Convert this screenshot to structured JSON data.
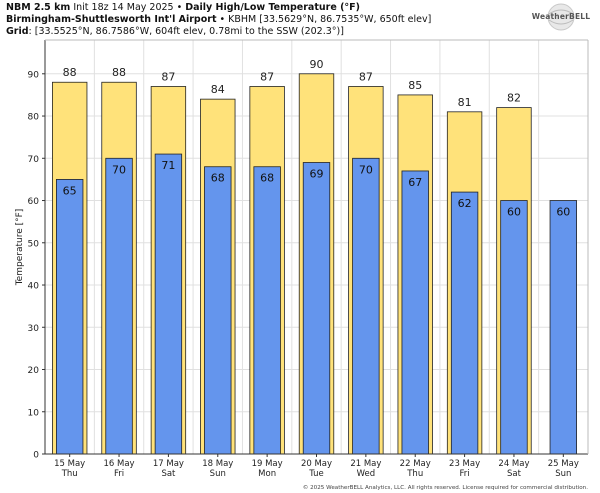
{
  "header": {
    "line1_bold_a": "NBM 2.5 km",
    "line1_normal": " Init 18z 14 May 2025 • ",
    "line1_bold_b": "Daily High/Low Temperature (°F)",
    "line2_bold": "Birmingham-Shuttlesworth Int'l Airport",
    "line2_normal": " • KBHM [33.5629°N, 86.7535°W, 650ft elev]",
    "line3_bold": "Grid",
    "line3_normal": ": [33.5525°N, 86.7586°W, 604ft elev, 0.78mi to the SSW (202.3°)]"
  },
  "logo": {
    "text": "WeatherBELL",
    "icon": "weatherbell-globe-logo"
  },
  "copyright": "© 2025 WeatherBELL Analytics, LLC. All rights reserved. License required for commercial distribution.",
  "colors": {
    "high": "#ffe27a",
    "low": "#6495ed",
    "grid": "#e0e0e0",
    "bar_stroke": "#222222"
  },
  "chart_data": {
    "type": "bar",
    "ylabel": "Temperature [°F]",
    "ylim": [
      0,
      98
    ],
    "yticks": [
      0,
      10,
      20,
      30,
      40,
      50,
      60,
      70,
      80,
      90
    ],
    "grid": true,
    "categories": [
      {
        "date": "15 May",
        "day": "Thu"
      },
      {
        "date": "16 May",
        "day": "Fri"
      },
      {
        "date": "17 May",
        "day": "Sat"
      },
      {
        "date": "18 May",
        "day": "Sun"
      },
      {
        "date": "19 May",
        "day": "Mon"
      },
      {
        "date": "20 May",
        "day": "Tue"
      },
      {
        "date": "21 May",
        "day": "Wed"
      },
      {
        "date": "22 May",
        "day": "Thu"
      },
      {
        "date": "23 May",
        "day": "Fri"
      },
      {
        "date": "24 May",
        "day": "Sat"
      },
      {
        "date": "25 May",
        "day": "Sun"
      }
    ],
    "series": [
      {
        "key": "high",
        "values": [
          88,
          88,
          87,
          84,
          87,
          90,
          87,
          85,
          81,
          82,
          null
        ]
      },
      {
        "key": "low",
        "values": [
          65,
          70,
          71,
          68,
          68,
          69,
          70,
          67,
          62,
          60,
          60
        ]
      }
    ]
  }
}
